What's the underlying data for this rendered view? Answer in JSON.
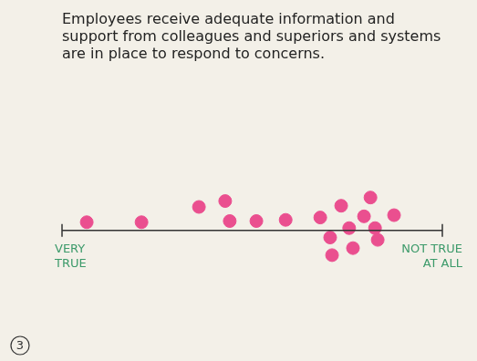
{
  "chart_data": {
    "type": "scatter",
    "title": [
      "Employees receive adequate information and",
      "support from colleagues and superiors and systems",
      "are in place to respond to concerns."
    ],
    "x": [
      6.5,
      20.9,
      36.0,
      42.9,
      44.1,
      51.1,
      58.8,
      67.9,
      73.4,
      81.1,
      79.4,
      87.3,
      75.5,
      82.3,
      70.5,
      83.0,
      76.5,
      71.0
    ],
    "values": [
      0.7,
      0.7,
      2.0,
      2.5,
      0.8,
      0.8,
      0.9,
      1.1,
      2.1,
      2.8,
      1.2,
      1.3,
      0.2,
      0.2,
      -0.6,
      -0.8,
      -1.5,
      -2.1
    ],
    "color": "#ea4f8f",
    "marker": "circle",
    "xlim": [
      0,
      100
    ],
    "ylim": [
      -8,
      8
    ],
    "grid": false,
    "tick_labels": false,
    "annotations": [
      {
        "text": [
          "VERY",
          "TRUE"
        ],
        "x": 0
      },
      {
        "text": [
          "NOT TRUE",
          "AT ALL"
        ],
        "x": 100
      },
      {
        "text": "3"
      }
    ]
  }
}
